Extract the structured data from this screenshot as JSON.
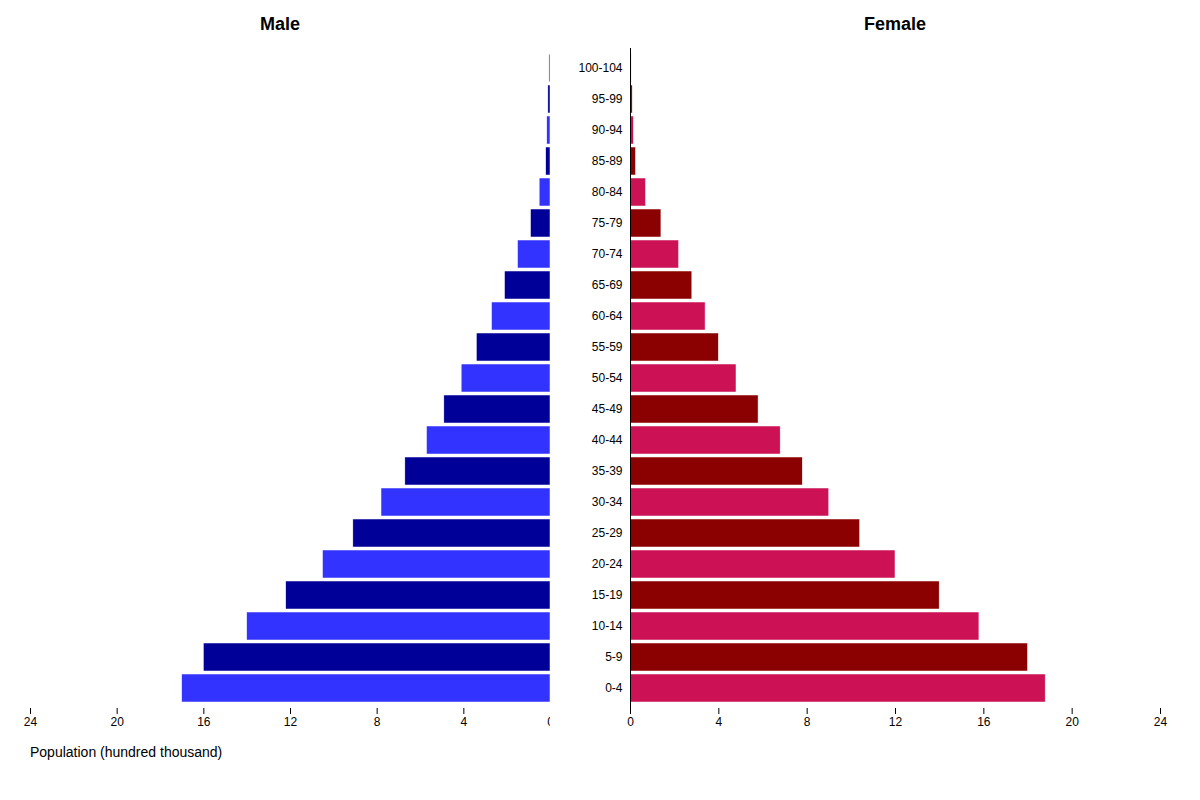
{
  "chart_data": {
    "type": "bar",
    "orientation": "horizontal",
    "categories": [
      "0-4",
      "5-9",
      "10-14",
      "15-19",
      "20-24",
      "25-29",
      "30-34",
      "35-39",
      "40-44",
      "45-49",
      "50-54",
      "55-59",
      "60-64",
      "65-69",
      "70-74",
      "75-79",
      "80-84",
      "85-89",
      "90-94",
      "95-99",
      "100-104"
    ],
    "series": [
      {
        "name": "Male",
        "values": [
          17.0,
          16.0,
          14.0,
          12.2,
          10.5,
          9.1,
          7.8,
          6.7,
          5.7,
          4.9,
          4.1,
          3.4,
          2.7,
          2.1,
          1.5,
          0.9,
          0.5,
          0.2,
          0.15,
          0.1,
          0.05
        ],
        "colors": [
          "#3333ff",
          "#000099",
          "#3333ff",
          "#000099",
          "#3333ff",
          "#000099",
          "#3333ff",
          "#000099",
          "#3333ff",
          "#000099",
          "#3333ff",
          "#000099",
          "#3333ff",
          "#000099",
          "#3333ff",
          "#000099",
          "#3333ff",
          "#000099",
          "#3333ff",
          "#000099",
          "#3333ff"
        ]
      },
      {
        "name": "Female",
        "values": [
          18.8,
          18.0,
          15.8,
          14.0,
          12.0,
          10.4,
          9.0,
          7.8,
          6.8,
          5.8,
          4.8,
          4.0,
          3.4,
          2.8,
          2.2,
          1.4,
          0.7,
          0.25,
          0.15,
          0.1,
          0.05
        ],
        "colors": [
          "#cc1155",
          "#8b0000",
          "#cc1155",
          "#8b0000",
          "#cc1155",
          "#8b0000",
          "#cc1155",
          "#8b0000",
          "#cc1155",
          "#8b0000",
          "#cc1155",
          "#8b0000",
          "#cc1155",
          "#8b0000",
          "#cc1155",
          "#8b0000",
          "#cc1155",
          "#8b0000",
          "#cc1155",
          "#8b0000",
          "#cc1155"
        ]
      }
    ],
    "xlabel": "Population (hundred thousand)",
    "xlim": [
      0,
      24
    ],
    "xticks": [
      0,
      4,
      8,
      12,
      16,
      20,
      24
    ],
    "grid": false
  }
}
